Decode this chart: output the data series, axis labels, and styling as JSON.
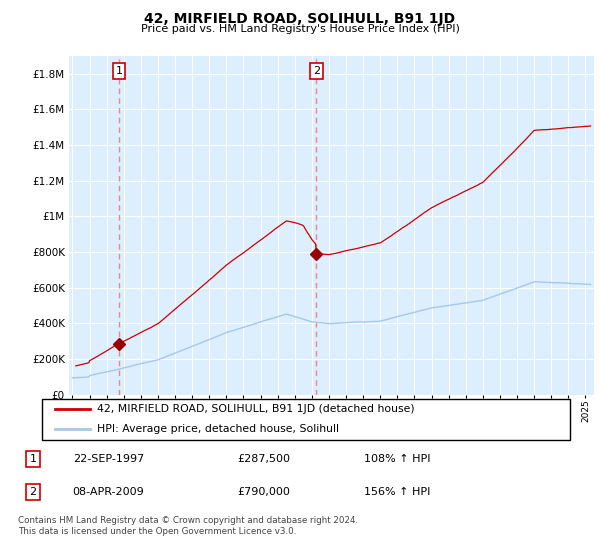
{
  "title": "42, MIRFIELD ROAD, SOLIHULL, B91 1JD",
  "subtitle": "Price paid vs. HM Land Registry's House Price Index (HPI)",
  "legend_line1": "42, MIRFIELD ROAD, SOLIHULL, B91 1JD (detached house)",
  "legend_line2": "HPI: Average price, detached house, Solihull",
  "sale1_label": "1",
  "sale1_date": "22-SEP-1997",
  "sale1_price": "£287,500",
  "sale1_hpi": "108% ↑ HPI",
  "sale2_label": "2",
  "sale2_date": "08-APR-2009",
  "sale2_price": "£790,000",
  "sale2_hpi": "156% ↑ HPI",
  "footer": "Contains HM Land Registry data © Crown copyright and database right 2024.\nThis data is licensed under the Open Government Licence v3.0.",
  "hpi_color": "#a8c8e8",
  "price_color": "#cc0000",
  "dashed_color": "#e88888",
  "sale_marker_color": "#990000",
  "plot_bg_color": "#ddeeff",
  "ylim": [
    0,
    1900000
  ],
  "yticks": [
    0,
    200000,
    400000,
    600000,
    800000,
    1000000,
    1200000,
    1400000,
    1600000,
    1800000
  ],
  "ylabel_texts": [
    "£0",
    "£200K",
    "£400K",
    "£600K",
    "£800K",
    "£1M",
    "£1.2M",
    "£1.4M",
    "£1.6M",
    "£1.8M"
  ],
  "xmin": 1994.8,
  "xmax": 2025.5,
  "sale1_x": 1997.72,
  "sale1_y": 287500,
  "sale2_x": 2009.27,
  "sale2_y": 790000
}
